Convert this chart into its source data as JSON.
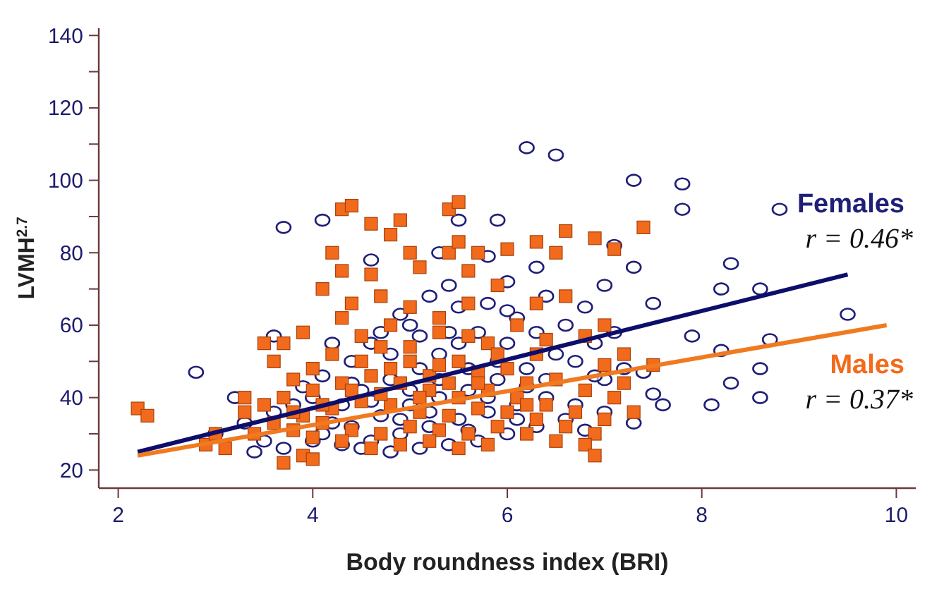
{
  "chart_data": {
    "type": "scatter",
    "xlabel": "Body roundness index (BRI)",
    "ylabel": "LVMH$^{2.7}$",
    "xlim": [
      1.8,
      10.2
    ],
    "xticks": [
      2,
      4,
      6,
      8,
      10
    ],
    "ylim": [
      15,
      142
    ],
    "yticks": [
      20,
      {
        "value": 30,
        "label": null
      },
      40,
      {
        "value": 50,
        "label": null
      },
      60,
      {
        "value": 70,
        "label": null
      },
      80,
      {
        "value": 90,
        "label": null
      },
      100,
      {
        "value": 110,
        "label": null
      },
      120,
      {
        "value": 130,
        "label": null
      },
      140
    ],
    "grid": false,
    "annotations": [
      "r = 0.46*",
      "r = 0.37*"
    ],
    "series": [
      {
        "name": "Females",
        "marker": "circle",
        "color": "#1f1f78",
        "x": [
          6.2,
          6.5,
          7.3,
          7.8,
          7.8,
          8.8,
          3.7,
          4.1,
          5.9,
          7.1,
          6.3,
          7.3,
          8.3,
          8.6,
          8.2,
          7.0,
          7.5,
          9.5,
          8.7,
          8.2,
          8.3,
          8.6,
          8.1,
          7.6,
          7.2,
          7.0,
          7.4,
          7.9,
          8.6,
          2.8,
          3.6,
          3.2,
          3.5,
          3.0,
          3.4,
          3.7,
          4.0,
          4.2,
          4.6,
          5.0,
          5.4,
          5.8,
          5.3,
          6.0,
          6.4,
          6.8,
          6.6,
          6.1,
          5.8,
          5.5,
          5.2,
          4.9,
          4.7,
          4.4,
          4.1,
          3.9,
          3.8,
          4.3,
          4.5,
          4.8,
          5.1,
          5.3,
          5.5,
          5.7,
          6.0,
          6.3,
          6.5,
          6.7,
          6.9,
          7.1,
          6.2,
          5.9,
          5.6,
          5.3,
          5.0,
          4.7,
          4.4,
          4.1,
          4.6,
          4.9,
          5.2,
          5.5,
          5.8,
          6.1,
          6.4,
          6.7,
          7.0,
          6.6,
          6.3,
          6.0,
          5.7,
          5.4,
          5.1,
          4.8,
          4.5,
          5.3,
          5.6,
          5.9,
          6.2,
          4.2,
          4.8,
          5.4,
          6.8,
          7.3,
          4.4,
          4.0,
          3.6,
          3.3,
          6.4,
          5.0,
          4.6,
          5.8,
          6.1,
          5.2,
          4.9,
          4.3,
          5.6,
          6.9,
          7.5,
          5.5,
          4.6,
          5.1,
          6.0
        ],
        "values": [
          109,
          107,
          100,
          99,
          92,
          92,
          87,
          89,
          89,
          82,
          76,
          76,
          77,
          70,
          70,
          71,
          66,
          63,
          56,
          53,
          44,
          40,
          38,
          38,
          48,
          45,
          47,
          57,
          48,
          47,
          57,
          40,
          28,
          30,
          25,
          26,
          28,
          33,
          55,
          60,
          71,
          79,
          80,
          72,
          68,
          65,
          60,
          62,
          66,
          65,
          68,
          63,
          58,
          50,
          46,
          43,
          38,
          38,
          42,
          45,
          48,
          52,
          55,
          58,
          55,
          58,
          52,
          50,
          55,
          58,
          48,
          45,
          42,
          40,
          38,
          35,
          32,
          30,
          28,
          30,
          32,
          34,
          36,
          38,
          40,
          38,
          36,
          34,
          32,
          30,
          28,
          27,
          26,
          25,
          26,
          45,
          48,
          50,
          43,
          55,
          52,
          58,
          31,
          33,
          44,
          40,
          36,
          33,
          45,
          42,
          39,
          40,
          34,
          36,
          34,
          27,
          31,
          46,
          41,
          89,
          78,
          57,
          64
        ]
      },
      {
        "name": "Males",
        "marker": "square",
        "color": "#f26a1b",
        "x": [
          2.2,
          2.3,
          2.9,
          3.0,
          3.1,
          3.3,
          3.5,
          3.7,
          3.7,
          3.9,
          4.0,
          4.3,
          4.4,
          4.6,
          4.8,
          4.9,
          5.4,
          5.5,
          4.2,
          4.3,
          4.6,
          5.0,
          5.4,
          5.5,
          5.7,
          6.0,
          6.3,
          6.5,
          6.6,
          6.9,
          7.1,
          7.4,
          5.1,
          5.6,
          4.1,
          4.4,
          4.7,
          5.0,
          5.3,
          5.6,
          5.9,
          6.3,
          6.6,
          7.0,
          7.2,
          7.5,
          6.8,
          6.3,
          5.8,
          5.3,
          4.8,
          4.3,
          3.9,
          3.6,
          3.8,
          4.0,
          4.2,
          4.5,
          4.7,
          5.0,
          5.2,
          5.5,
          5.7,
          6.0,
          6.2,
          6.5,
          6.8,
          7.1,
          7.3,
          7.0,
          6.7,
          6.4,
          6.1,
          5.8,
          5.5,
          5.2,
          4.9,
          4.6,
          4.3,
          4.0,
          3.7,
          3.5,
          3.3,
          3.6,
          3.9,
          4.2,
          4.5,
          4.8,
          5.1,
          5.4,
          5.7,
          6.0,
          6.3,
          6.6,
          6.9,
          6.5,
          6.2,
          5.9,
          5.6,
          5.3,
          5.0,
          4.7,
          4.4,
          4.1,
          3.8,
          3.4,
          4.6,
          4.9,
          5.2,
          5.5,
          5.8,
          4.3,
          4.0,
          6.8,
          7.2,
          7.0,
          4.5,
          5.0,
          5.6,
          6.1,
          6.4,
          4.8,
          5.3,
          5.9,
          4.4,
          5.1,
          5.4,
          6.2,
          4.7,
          3.8,
          4.1,
          5.7,
          6.9
        ],
        "values": [
          37,
          35,
          27,
          30,
          26,
          40,
          55,
          55,
          22,
          24,
          23,
          92,
          93,
          88,
          85,
          89,
          92,
          94,
          80,
          75,
          74,
          80,
          80,
          83,
          80,
          81,
          83,
          80,
          86,
          84,
          81,
          87,
          76,
          75,
          70,
          66,
          68,
          65,
          62,
          66,
          71,
          66,
          68,
          60,
          52,
          49,
          57,
          52,
          55,
          58,
          60,
          62,
          58,
          50,
          45,
          48,
          52,
          50,
          54,
          50,
          46,
          50,
          47,
          48,
          44,
          45,
          42,
          40,
          36,
          34,
          36,
          38,
          40,
          42,
          40,
          42,
          44,
          46,
          44,
          42,
          40,
          38,
          36,
          33,
          35,
          37,
          39,
          38,
          36,
          35,
          37,
          36,
          34,
          32,
          30,
          28,
          30,
          32,
          30,
          31,
          32,
          30,
          31,
          33,
          31,
          30,
          26,
          27,
          28,
          26,
          27,
          28,
          29,
          27,
          44,
          49,
          57,
          54,
          57,
          60,
          56,
          48,
          49,
          52,
          42,
          40,
          44,
          38,
          41,
          36,
          38,
          44,
          24
        ]
      },
      {
        "type": "line",
        "color": "#0d0d6b",
        "x": [
          2.2,
          9.5
        ],
        "values": [
          25,
          74
        ]
      },
      {
        "type": "line",
        "color": "#f07a20",
        "x": [
          2.2,
          9.9
        ],
        "values": [
          24,
          60
        ]
      }
    ]
  }
}
